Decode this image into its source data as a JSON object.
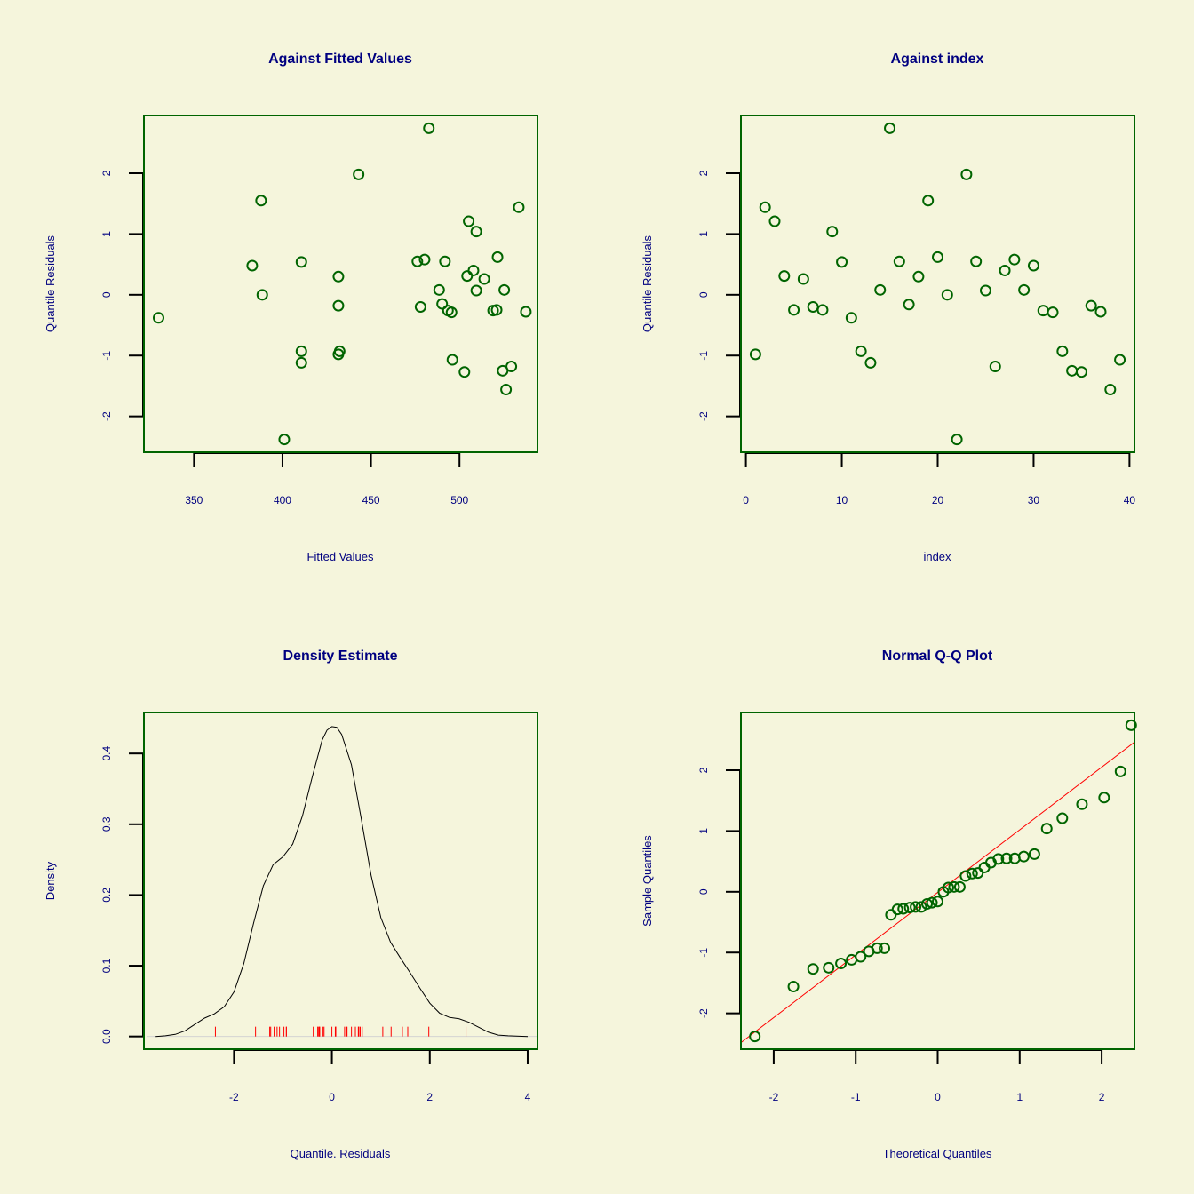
{
  "colors": {
    "background": "#f5f5dc",
    "text": "#000080",
    "frame": "#006400",
    "points": "#006400",
    "axis": "#000000",
    "density_line": "#000000",
    "rug": "#ff0000",
    "qq_line": "#ff0000",
    "zero_line": "#d3d3d3"
  },
  "chart_data": [
    {
      "id": "fitted",
      "type": "scatter",
      "title": "Against Fitted Values",
      "xlabel": "Fitted Values",
      "ylabel": "Quantile Residuals",
      "xlim": [
        321.72,
        544.06
      ],
      "ylim": [
        -2.59,
        2.95
      ],
      "xticks": [
        350,
        400,
        450,
        500
      ],
      "yticks": [
        -2,
        -1,
        0,
        1,
        2
      ],
      "points": [
        [
          330.0,
          -0.38
        ],
        [
          382.9,
          0.48
        ],
        [
          387.9,
          1.55
        ],
        [
          388.6,
          0.0
        ],
        [
          401.0,
          -2.38
        ],
        [
          410.7,
          0.54
        ],
        [
          410.7,
          -0.93
        ],
        [
          410.7,
          -1.12
        ],
        [
          431.6,
          0.3
        ],
        [
          431.6,
          -0.18
        ],
        [
          431.6,
          -0.98
        ],
        [
          432.3,
          -0.93
        ],
        [
          443.0,
          1.98
        ],
        [
          476.2,
          0.55
        ],
        [
          478.0,
          -0.2
        ],
        [
          480.3,
          0.58
        ],
        [
          482.7,
          2.74
        ],
        [
          488.5,
          0.08
        ],
        [
          490.2,
          -0.15
        ],
        [
          491.8,
          0.55
        ],
        [
          493.5,
          -0.26
        ],
        [
          495.5,
          -0.29
        ],
        [
          496.0,
          -1.07
        ],
        [
          502.8,
          -1.27
        ],
        [
          504.3,
          0.31
        ],
        [
          505.2,
          1.21
        ],
        [
          507.9,
          0.4
        ],
        [
          509.5,
          1.04
        ],
        [
          509.5,
          0.07
        ],
        [
          514.0,
          0.26
        ],
        [
          519.0,
          -0.26
        ],
        [
          521.0,
          -0.25
        ],
        [
          521.5,
          0.62
        ],
        [
          524.4,
          -1.25
        ],
        [
          525.3,
          0.08
        ],
        [
          526.3,
          -1.56
        ],
        [
          529.3,
          -1.18
        ],
        [
          533.5,
          1.44
        ],
        [
          537.5,
          -0.28
        ]
      ]
    },
    {
      "id": "index",
      "type": "scatter",
      "title": "Against  index",
      "xlabel": "index",
      "ylabel": "Quantile Residuals",
      "xlim": [
        -0.52,
        40.52
      ],
      "ylim": [
        -2.59,
        2.95
      ],
      "xticks": [
        0,
        10,
        20,
        30,
        40
      ],
      "yticks": [
        -2,
        -1,
        0,
        1,
        2
      ],
      "points": [
        [
          1,
          -0.98
        ],
        [
          2,
          1.44
        ],
        [
          3,
          1.21
        ],
        [
          4,
          0.31
        ],
        [
          5,
          -0.25
        ],
        [
          6,
          0.26
        ],
        [
          7,
          -0.2
        ],
        [
          8,
          -0.25
        ],
        [
          9,
          1.04
        ],
        [
          10,
          0.54
        ],
        [
          11,
          -0.38
        ],
        [
          12,
          -0.93
        ],
        [
          13,
          -1.12
        ],
        [
          14,
          0.08
        ],
        [
          15,
          2.74
        ],
        [
          16,
          0.55
        ],
        [
          17,
          -0.16
        ],
        [
          18,
          0.3
        ],
        [
          19,
          1.55
        ],
        [
          20,
          0.62
        ],
        [
          21,
          0.0
        ],
        [
          22,
          -2.38
        ],
        [
          23,
          1.98
        ],
        [
          24,
          0.55
        ],
        [
          25,
          0.07
        ],
        [
          26,
          -1.18
        ],
        [
          27,
          0.4
        ],
        [
          28,
          0.58
        ],
        [
          29,
          0.08
        ],
        [
          30,
          0.48
        ],
        [
          31,
          -0.26
        ],
        [
          32,
          -0.29
        ],
        [
          33,
          -0.93
        ],
        [
          34,
          -1.25
        ],
        [
          35,
          -1.27
        ],
        [
          36,
          -0.18
        ],
        [
          37,
          -0.28
        ],
        [
          38,
          -1.56
        ],
        [
          39,
          -1.07
        ]
      ]
    },
    {
      "id": "density",
      "type": "line",
      "title": "Density Estimate",
      "xlabel": "Quantile. Residuals",
      "ylabel": "Density",
      "xlim": [
        -3.84,
        4.2
      ],
      "ylim": [
        -0.018,
        0.458
      ],
      "xticks": [
        -2,
        0,
        2,
        4
      ],
      "yticks": [
        0.0,
        0.1,
        0.2,
        0.3,
        0.4
      ],
      "ytick_labels": [
        "0.0",
        "0.1",
        "0.2",
        "0.3",
        "0.4"
      ],
      "curve": [
        [
          -3.6,
          0.0
        ],
        [
          -3.4,
          0.001
        ],
        [
          -3.2,
          0.003
        ],
        [
          -3.0,
          0.008
        ],
        [
          -2.8,
          0.017
        ],
        [
          -2.6,
          0.026
        ],
        [
          -2.4,
          0.032
        ],
        [
          -2.2,
          0.042
        ],
        [
          -2.0,
          0.063
        ],
        [
          -1.8,
          0.103
        ],
        [
          -1.6,
          0.16
        ],
        [
          -1.4,
          0.213
        ],
        [
          -1.2,
          0.243
        ],
        [
          -1.0,
          0.254
        ],
        [
          -0.8,
          0.272
        ],
        [
          -0.6,
          0.312
        ],
        [
          -0.4,
          0.367
        ],
        [
          -0.2,
          0.419
        ],
        [
          -0.1,
          0.433
        ],
        [
          0.0,
          0.438
        ],
        [
          0.1,
          0.437
        ],
        [
          0.2,
          0.427
        ],
        [
          0.4,
          0.384
        ],
        [
          0.6,
          0.308
        ],
        [
          0.8,
          0.228
        ],
        [
          1.0,
          0.168
        ],
        [
          1.2,
          0.133
        ],
        [
          1.4,
          0.111
        ],
        [
          1.6,
          0.09
        ],
        [
          1.8,
          0.068
        ],
        [
          2.0,
          0.047
        ],
        [
          2.2,
          0.033
        ],
        [
          2.4,
          0.027
        ],
        [
          2.6,
          0.025
        ],
        [
          2.8,
          0.02
        ],
        [
          3.0,
          0.013
        ],
        [
          3.2,
          0.006
        ],
        [
          3.4,
          0.002
        ],
        [
          3.6,
          0.001
        ],
        [
          4.0,
          0.0
        ]
      ],
      "rug": [
        -2.38,
        -1.56,
        -1.27,
        -1.25,
        -1.18,
        -1.12,
        -1.07,
        -0.98,
        -0.93,
        -0.93,
        -0.38,
        -0.29,
        -0.28,
        -0.26,
        -0.25,
        -0.25,
        -0.2,
        -0.18,
        -0.16,
        0.0,
        0.07,
        0.08,
        0.08,
        0.26,
        0.3,
        0.31,
        0.4,
        0.48,
        0.54,
        0.55,
        0.55,
        0.58,
        0.62,
        1.04,
        1.21,
        1.44,
        1.55,
        1.98,
        2.74
      ]
    },
    {
      "id": "qq",
      "type": "scatter",
      "title": "Normal Q-Q Plot",
      "xlabel": "Theoretical Quantiles",
      "ylabel": "Sample Quantiles",
      "xlim": [
        -2.4,
        2.4
      ],
      "ylim": [
        -2.59,
        2.95
      ],
      "xticks": [
        -2,
        -1,
        0,
        1,
        2
      ],
      "yticks": [
        -2,
        -1,
        0,
        1,
        2
      ],
      "qq_line": {
        "intercept": -0.01,
        "slope": 1.03
      },
      "points": [
        [
          -2.23,
          -2.38
        ],
        [
          -1.76,
          -1.56
        ],
        [
          -1.52,
          -1.27
        ],
        [
          -1.33,
          -1.25
        ],
        [
          -1.18,
          -1.18
        ],
        [
          -1.05,
          -1.12
        ],
        [
          -0.94,
          -1.07
        ],
        [
          -0.84,
          -0.98
        ],
        [
          -0.74,
          -0.93
        ],
        [
          -0.65,
          -0.93
        ],
        [
          -0.57,
          -0.38
        ],
        [
          -0.49,
          -0.29
        ],
        [
          -0.42,
          -0.28
        ],
        [
          -0.34,
          -0.26
        ],
        [
          -0.27,
          -0.25
        ],
        [
          -0.2,
          -0.25
        ],
        [
          -0.13,
          -0.2
        ],
        [
          -0.07,
          -0.18
        ],
        [
          0.0,
          -0.16
        ],
        [
          0.07,
          0.0
        ],
        [
          0.13,
          0.07
        ],
        [
          0.2,
          0.08
        ],
        [
          0.27,
          0.08
        ],
        [
          0.34,
          0.26
        ],
        [
          0.42,
          0.3
        ],
        [
          0.49,
          0.31
        ],
        [
          0.57,
          0.4
        ],
        [
          0.65,
          0.48
        ],
        [
          0.74,
          0.54
        ],
        [
          0.84,
          0.55
        ],
        [
          0.94,
          0.55
        ],
        [
          1.05,
          0.58
        ],
        [
          1.18,
          0.62
        ],
        [
          1.33,
          1.04
        ],
        [
          1.52,
          1.21
        ],
        [
          1.76,
          1.44
        ],
        [
          2.03,
          1.55
        ],
        [
          2.23,
          1.98
        ],
        [
          2.36,
          2.74
        ]
      ]
    }
  ]
}
